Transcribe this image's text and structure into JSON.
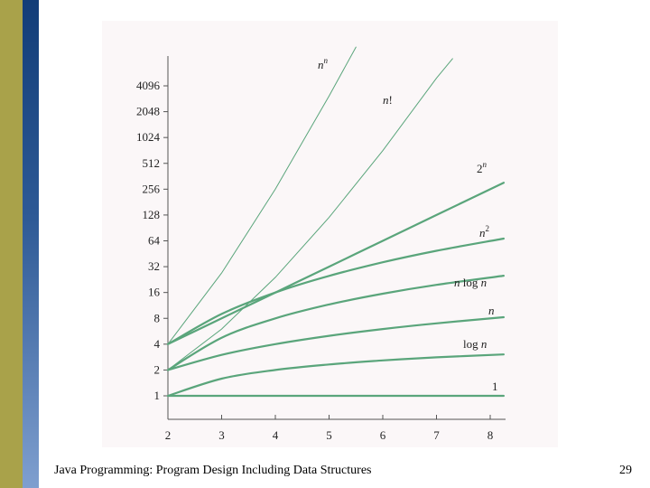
{
  "slide": {
    "footer_text": "Java Programming: Program Design Including Data Structures",
    "page_number": "29"
  },
  "colors": {
    "curve": "#5aa57b",
    "axis": "#555555",
    "text": "#222222",
    "band_olive": "#a9a24a",
    "band_blue": "#1c4a88"
  },
  "chart_data": {
    "type": "line",
    "title": "",
    "xlabel": "",
    "ylabel": "",
    "y_scale": "log2",
    "x_ticks": [
      "2",
      "3",
      "4",
      "5",
      "6",
      "7",
      "8"
    ],
    "y_ticks": [
      "1",
      "2",
      "4",
      "8",
      "16",
      "32",
      "64",
      "128",
      "256",
      "512",
      "1024",
      "2048",
      "4096"
    ],
    "xlim": [
      2,
      8.25
    ],
    "ylim": [
      0.7,
      16384
    ],
    "series": [
      {
        "name": "1",
        "label": "1",
        "x": [
          2,
          3,
          4,
          5,
          6,
          7,
          8.25
        ],
        "y": [
          1,
          1,
          1,
          1,
          1,
          1,
          1
        ]
      },
      {
        "name": "log n",
        "label": "log n",
        "x": [
          2,
          3,
          4,
          5,
          6,
          7,
          8.25
        ],
        "y": [
          1,
          1.585,
          2,
          2.32,
          2.585,
          2.81,
          3.04
        ]
      },
      {
        "name": "n",
        "label": "n",
        "x": [
          2,
          3,
          4,
          5,
          6,
          7,
          8.25
        ],
        "y": [
          2,
          3,
          4,
          5,
          6,
          7,
          8.25
        ]
      },
      {
        "name": "n log n",
        "label": "n log n",
        "x": [
          2,
          3,
          4,
          5,
          6,
          7,
          8.25
        ],
        "y": [
          2,
          4.75,
          8,
          11.6,
          15.5,
          19.65,
          25.1
        ]
      },
      {
        "name": "n^2",
        "label": "n2",
        "x": [
          2,
          3,
          4,
          5,
          6,
          7,
          8.25
        ],
        "y": [
          4,
          9,
          16,
          25,
          36,
          49,
          68
        ]
      },
      {
        "name": "2^n",
        "label": "2n",
        "x": [
          2,
          3,
          4,
          5,
          6,
          7,
          8.25
        ],
        "y": [
          4,
          8,
          16,
          32,
          64,
          128,
          304
        ]
      },
      {
        "name": "n!",
        "label": "n!",
        "x": [
          2,
          3,
          4,
          5,
          6,
          7,
          7.3
        ],
        "y": [
          2,
          6,
          24,
          120,
          720,
          5040,
          8500
        ]
      },
      {
        "name": "n^n",
        "label": "nn",
        "x": [
          2,
          3,
          4,
          5,
          5.5
        ],
        "y": [
          4,
          27,
          256,
          3125,
          11600
        ]
      }
    ]
  }
}
